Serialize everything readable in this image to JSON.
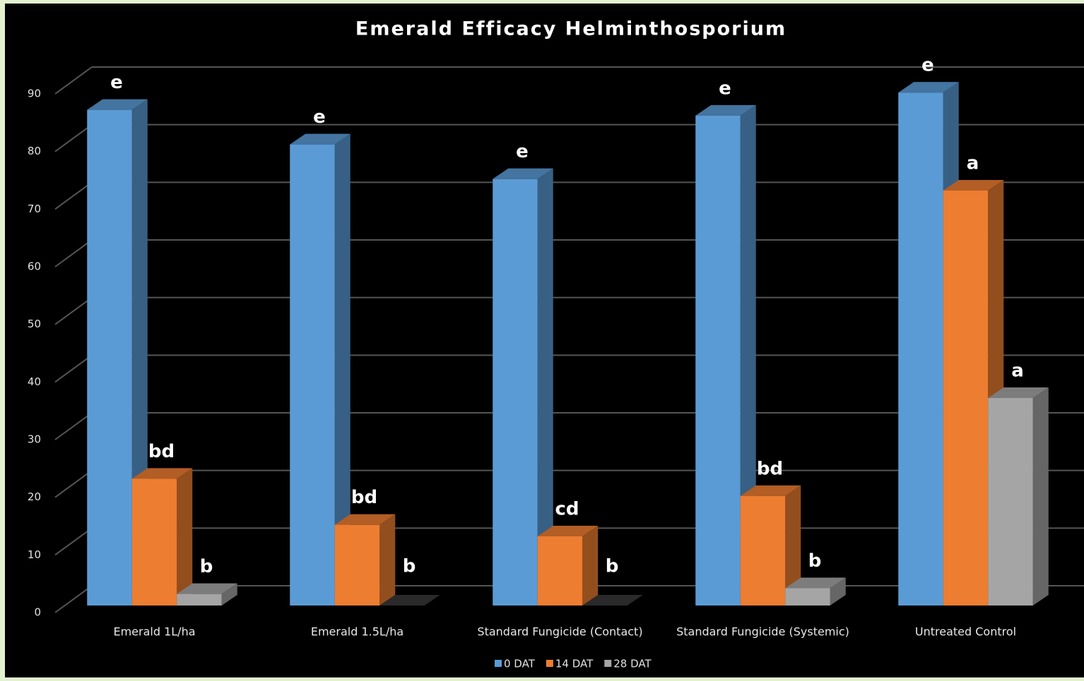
{
  "chart_data": {
    "type": "bar3d",
    "title": "Emerald Efficacy Helminthosporium",
    "categories": [
      "Emerald 1L/ha",
      "Emerald 1.5L/ha",
      "Standard Fungicide (Contact)",
      "Standard Fungicide (Systemic)",
      "Untreated Control"
    ],
    "series": [
      {
        "name": "0 DAT",
        "color": "#5b9bd5",
        "values": [
          86,
          80,
          74,
          85,
          89
        ],
        "letters": [
          "e",
          "e",
          "e",
          "e",
          "e"
        ]
      },
      {
        "name": "14 DAT",
        "color": "#ed7d31",
        "values": [
          22,
          14,
          12,
          19,
          72
        ],
        "letters": [
          "bd",
          "bd",
          "cd",
          "bd",
          "a"
        ]
      },
      {
        "name": "28 DAT",
        "color": "#a5a5a5",
        "values": [
          2,
          0,
          0,
          3,
          36
        ],
        "letters": [
          "b",
          "b",
          "b",
          "b",
          "a"
        ]
      }
    ],
    "ylim": [
      0,
      90
    ],
    "yticks": [
      0,
      10,
      20,
      30,
      40,
      50,
      60,
      70,
      80,
      90
    ],
    "grid": true,
    "legend": "bottom"
  }
}
